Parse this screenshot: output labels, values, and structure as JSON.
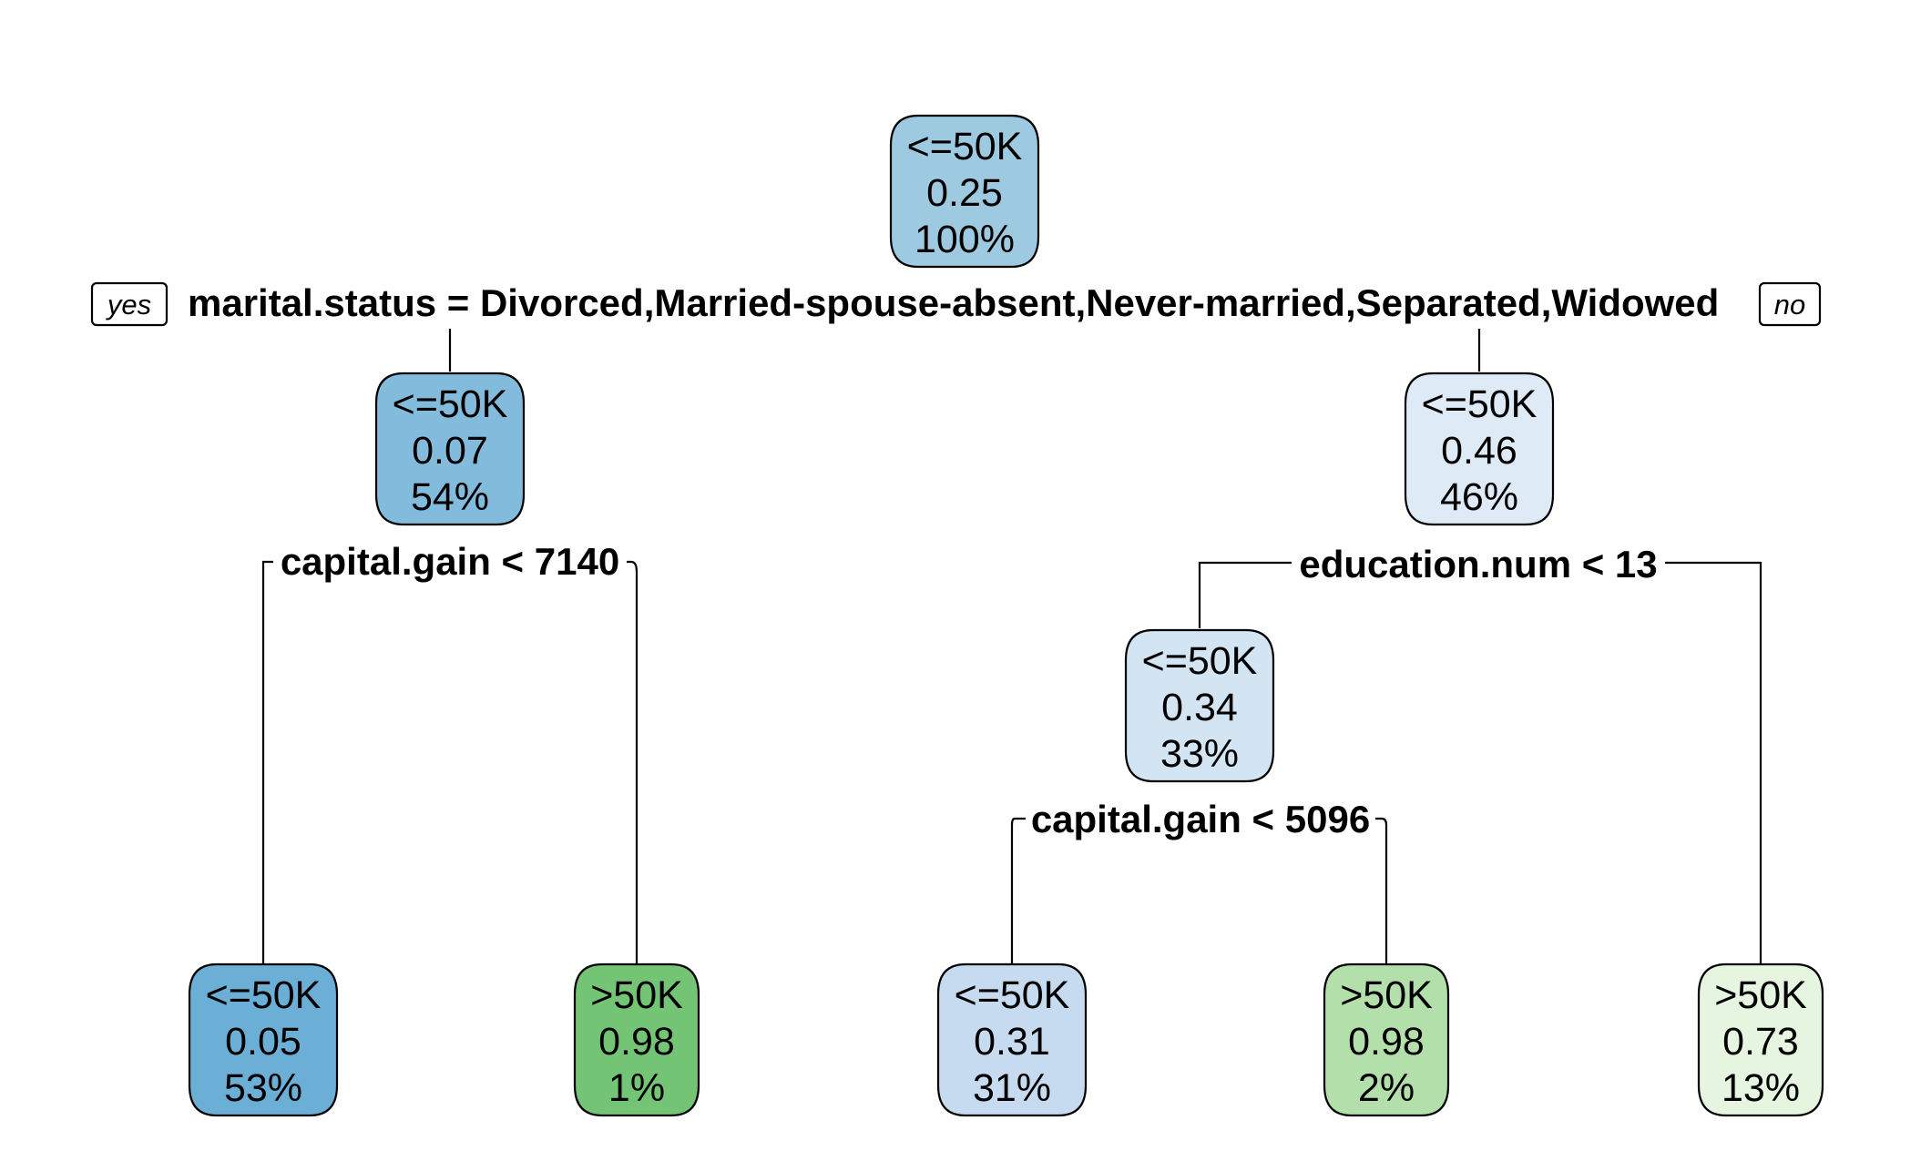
{
  "tree": {
    "legend_yes": "yes",
    "legend_no": "no",
    "nodes": [
      {
        "id": "root",
        "class_label": "<=50K",
        "prob": "0.25",
        "pct": "100%",
        "fill": "#9ecae1"
      },
      {
        "id": "n2",
        "class_label": "<=50K",
        "prob": "0.07",
        "pct": "54%",
        "fill": "#82bbdc"
      },
      {
        "id": "n3",
        "class_label": "<=50K",
        "prob": "0.46",
        "pct": "46%",
        "fill": "#deebf7"
      },
      {
        "id": "n6",
        "class_label": "<=50K",
        "prob": "0.34",
        "pct": "33%",
        "fill": "#d3e4f3"
      },
      {
        "id": "leaf4",
        "class_label": "<=50K",
        "prob": "0.05",
        "pct": "53%",
        "fill": "#6baed6"
      },
      {
        "id": "leaf5",
        "class_label": ">50K",
        "prob": "0.98",
        "pct": "1%",
        "fill": "#74c476"
      },
      {
        "id": "leaf12",
        "class_label": "<=50K",
        "prob": "0.31",
        "pct": "31%",
        "fill": "#c6dbef"
      },
      {
        "id": "leaf13",
        "class_label": ">50K",
        "prob": "0.98",
        "pct": "2%",
        "fill": "#b2dfaa"
      },
      {
        "id": "leaf7",
        "class_label": ">50K",
        "prob": "0.73",
        "pct": "13%",
        "fill": "#e5f5e0"
      }
    ],
    "splits": [
      {
        "id": "s_root",
        "text": "marital.status = Divorced,Married-spouse-absent,Never-married,Separated,Widowed"
      },
      {
        "id": "s_n2",
        "text": "capital.gain < 7140"
      },
      {
        "id": "s_n3",
        "text": "education.num < 13"
      },
      {
        "id": "s_n6",
        "text": "capital.gain < 5096"
      }
    ]
  }
}
